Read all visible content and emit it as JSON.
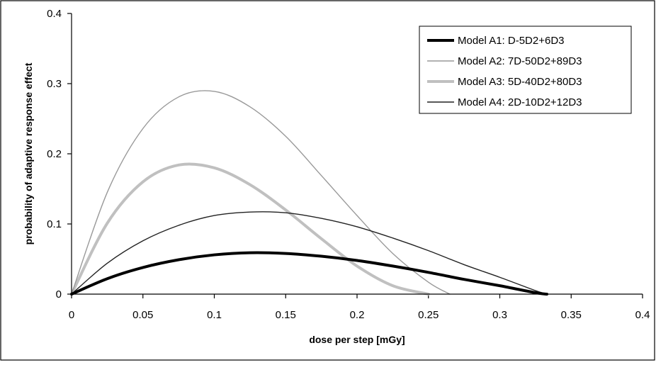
{
  "chart_data": {
    "type": "line",
    "title": "",
    "xlabel": "dose per step [mGy]",
    "ylabel": "probability of adaptive response effect",
    "xlim": [
      0,
      0.4
    ],
    "ylim": [
      0,
      0.4
    ],
    "x_ticks": [
      "0",
      "0.05",
      "0.1",
      "0.15",
      "0.2",
      "0.25",
      "0.3",
      "0.35",
      "0.4"
    ],
    "y_ticks": [
      "0",
      "0.1",
      "0.2",
      "0.3",
      "0.4"
    ],
    "grid": false,
    "legend_position": "top-right",
    "series": [
      {
        "name": "Model A1: D-5D2+6D3",
        "color": "#000000",
        "style": "thick",
        "x": [
          0,
          0.025,
          0.05,
          0.075,
          0.1,
          0.125,
          0.15,
          0.175,
          0.2,
          0.225,
          0.25,
          0.275,
          0.3,
          0.325,
          0.333
        ],
        "y": [
          0,
          0.022,
          0.038,
          0.049,
          0.056,
          0.059,
          0.058,
          0.054,
          0.048,
          0.04,
          0.031,
          0.021,
          0.012,
          0.002,
          0
        ]
      },
      {
        "name": "Model A2: 7D-50D2+89D3",
        "color": "#999999",
        "style": "thin",
        "x": [
          0,
          0.025,
          0.05,
          0.075,
          0.1,
          0.125,
          0.15,
          0.175,
          0.2,
          0.225,
          0.25,
          0.265
        ],
        "y": [
          0,
          0.145,
          0.236,
          0.281,
          0.289,
          0.267,
          0.225,
          0.169,
          0.112,
          0.058,
          0.017,
          0
        ]
      },
      {
        "name": "Model A3: 5D-40D2+80D3",
        "color": "#c0c0c0",
        "style": "thick",
        "x": [
          0,
          0.025,
          0.05,
          0.075,
          0.1,
          0.125,
          0.15,
          0.175,
          0.2,
          0.225,
          0.25
        ],
        "y": [
          0,
          0.101,
          0.16,
          0.184,
          0.18,
          0.156,
          0.12,
          0.079,
          0.04,
          0.012,
          0
        ]
      },
      {
        "name": "Model A4: 2D-10D2+12D3",
        "color": "#222222",
        "style": "thin",
        "x": [
          0,
          0.025,
          0.05,
          0.075,
          0.1,
          0.125,
          0.15,
          0.175,
          0.2,
          0.225,
          0.25,
          0.275,
          0.3,
          0.325,
          0.333
        ],
        "y": [
          0,
          0.044,
          0.076,
          0.098,
          0.112,
          0.117,
          0.116,
          0.108,
          0.096,
          0.08,
          0.062,
          0.042,
          0.024,
          0.005,
          0
        ]
      }
    ]
  }
}
